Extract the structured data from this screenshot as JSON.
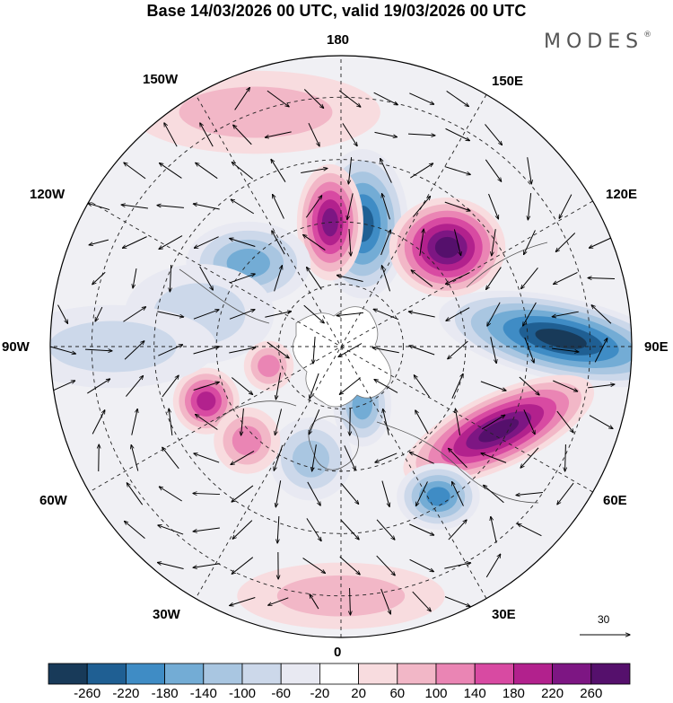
{
  "title": "Base 14/03/2026 00 UTC, valid 19/03/2026 00 UTC",
  "logo": {
    "text": "MODES",
    "mark": "®"
  },
  "longitude_labels": {
    "top": "180",
    "top_left": "150W",
    "top_right": "150E",
    "upper_left": "120W",
    "upper_right": "120E",
    "left": "90W",
    "right": "90E",
    "lower_left": "60W",
    "lower_right": "60E",
    "bottom_left": "30W",
    "bottom_right": "30E",
    "bottom": "0"
  },
  "reference_vector": {
    "label": "30",
    "icon": "arrow-right-icon"
  },
  "colorbar": {
    "ticks": [
      "-260",
      "-220",
      "-180",
      "-140",
      "-100",
      "-60",
      "-20",
      "20",
      "60",
      "100",
      "140",
      "180",
      "220",
      "260"
    ],
    "colors": [
      "#183a59",
      "#1f5f93",
      "#3f8cc5",
      "#73acd5",
      "#a9c6e1",
      "#ccd8ea",
      "#e8e9f2",
      "#ffffff",
      "#f8dcdf",
      "#f2b7c7",
      "#ea85b4",
      "#d84aa2",
      "#b2218d",
      "#7d1683",
      "#55106c"
    ]
  },
  "anomaly_centers": [
    {
      "lon": 170,
      "lat": 60,
      "value": -240,
      "rx_deg": 11,
      "ry_deg": 18,
      "rot": 0
    },
    {
      "lon": -175,
      "lat": 60,
      "value": 230,
      "rx_deg": 8,
      "ry_deg": 14,
      "rot": 0
    },
    {
      "lon": 133,
      "lat": 55,
      "value": 260,
      "rx_deg": 14,
      "ry_deg": 12,
      "rot": 0
    },
    {
      "lon": 92,
      "lat": 37,
      "value": -270,
      "rx_deg": 30,
      "ry_deg": 10,
      "rot": 12
    },
    {
      "lon": 62,
      "lat": 47,
      "value": 270,
      "rx_deg": 25,
      "ry_deg": 9,
      "rot": -25
    },
    {
      "lon": 33,
      "lat": 47,
      "value": -180,
      "rx_deg": 10,
      "ry_deg": 8,
      "rot": 0
    },
    {
      "lon": 20,
      "lat": 75,
      "value": -140,
      "rx_deg": 7,
      "ry_deg": 10,
      "rot": 0
    },
    {
      "lon": -15,
      "lat": 62,
      "value": -110,
      "rx_deg": 10,
      "ry_deg": 10,
      "rot": 0
    },
    {
      "lon": -132,
      "lat": 60,
      "value": -140,
      "rx_deg": 15,
      "ry_deg": 10,
      "rot": 0
    },
    {
      "lon": -103,
      "lat": 55,
      "value": -90,
      "rx_deg": 18,
      "ry_deg": 12,
      "rot": 0
    },
    {
      "lon": -68,
      "lat": 55,
      "value": 180,
      "rx_deg": 8,
      "ry_deg": 8,
      "rot": 0
    },
    {
      "lon": -45,
      "lat": 58,
      "value": 120,
      "rx_deg": 8,
      "ry_deg": 8,
      "rot": 0
    },
    {
      "lon": -75,
      "lat": 72,
      "value": 110,
      "rx_deg": 6,
      "ry_deg": 6,
      "rot": 0
    },
    {
      "lon": 0,
      "lat": 30,
      "value": 60,
      "rx_deg": 25,
      "ry_deg": 8,
      "rot": 0
    },
    {
      "lon": -160,
      "lat": 30,
      "value": 60,
      "rx_deg": 30,
      "ry_deg": 10,
      "rot": 0
    },
    {
      "lon": -90,
      "lat": 35,
      "value": -60,
      "rx_deg": 25,
      "ry_deg": 10,
      "rot": 0
    }
  ]
}
